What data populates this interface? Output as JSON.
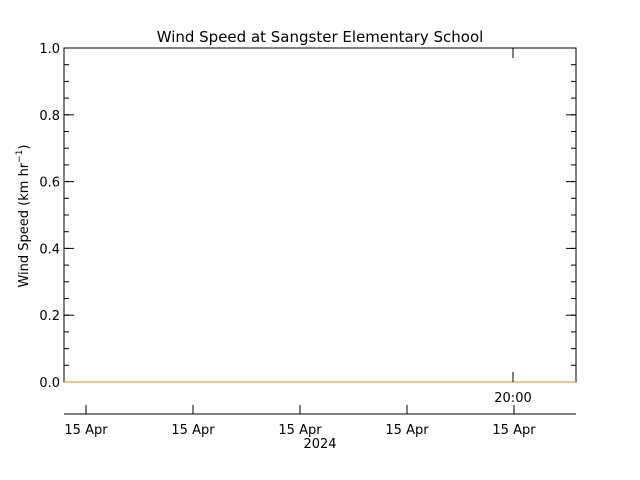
{
  "chart_data": {
    "type": "line",
    "title": "Wind Speed at Sangster Elementary School",
    "ylabel_main": "Wind Speed (km hr",
    "ylabel_sup": "−1",
    "ylabel_close": ")",
    "ylim": [
      0.0,
      1.0
    ],
    "y_ticks": [
      "0.0",
      "0.2",
      "0.4",
      "0.6",
      "0.8",
      "1.0"
    ],
    "x_tick_labels": [
      "15 Apr",
      "15 Apr",
      "15 Apr",
      "15 Apr",
      "15 Apr"
    ],
    "x_year_label": "2024",
    "inner_time_label": "20:00",
    "series": [
      {
        "values": [
          0.0,
          0.0
        ],
        "color": "#e8a33c"
      }
    ],
    "grid": false
  }
}
